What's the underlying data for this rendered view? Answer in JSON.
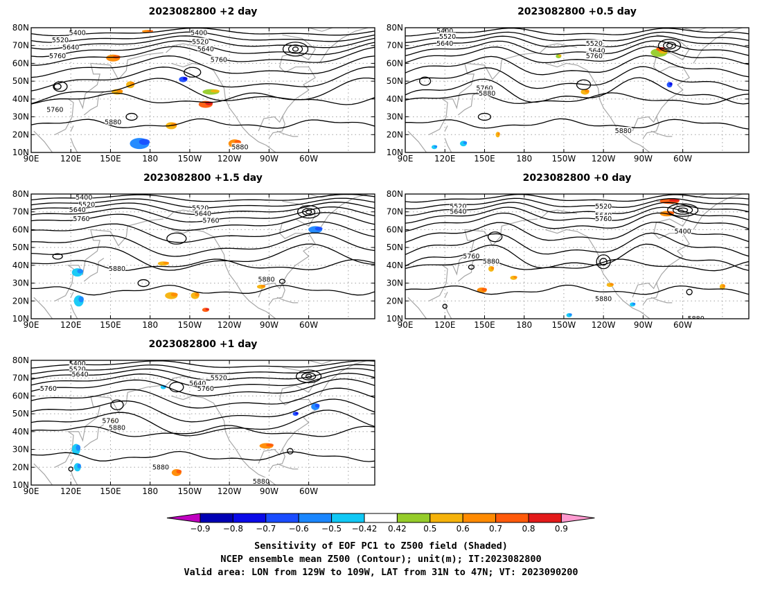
{
  "panels": [
    {
      "id": "p2",
      "title": "2023082800 +2 day",
      "contour_labels": [
        "5400",
        "5520",
        "5640",
        "5760",
        "5760",
        "5880",
        "5400",
        "5520",
        "5640",
        "5760",
        "5880"
      ]
    },
    {
      "id": "p05",
      "title": "2023082800 +0.5 day",
      "contour_labels": [
        "5400",
        "5520",
        "5640",
        "5760",
        "5880",
        "5520",
        "5640",
        "5760",
        "5880"
      ]
    },
    {
      "id": "p15",
      "title": "2023082800 +1.5 day",
      "contour_labels": [
        "5400",
        "5520",
        "5640",
        "5760",
        "5880",
        "5520",
        "5640",
        "5760",
        "5880"
      ]
    },
    {
      "id": "p0",
      "title": "2023082800 +0 day",
      "contour_labels": [
        "5520",
        "5640",
        "5760",
        "5880",
        "5520",
        "5640",
        "5760",
        "5400",
        "5880",
        "5880"
      ]
    },
    {
      "id": "p1",
      "title": "2023082800 +1 day",
      "contour_labels": [
        "5400",
        "5520",
        "5640",
        "5760",
        "5760",
        "5880",
        "5640",
        "5760",
        "5520",
        "5880",
        "5880"
      ]
    }
  ],
  "lat_labels": [
    "80N",
    "70N",
    "60N",
    "50N",
    "40N",
    "30N",
    "20N",
    "10N"
  ],
  "lon_labels": [
    "90E",
    "120E",
    "150E",
    "180",
    "150W",
    "120W",
    "90W",
    "60W"
  ],
  "colorbar": {
    "ticks": [
      "−0.9",
      "−0.8",
      "−0.7",
      "−0.6",
      "−0.5",
      "−0.42",
      "0.42",
      "0.5",
      "0.6",
      "0.7",
      "0.8",
      "0.9"
    ],
    "colors": {
      "under": "#c000c0",
      "bins": [
        "#0000b4",
        "#0a0ae8",
        "#1a4cff",
        "#1a86ff",
        "#10c8f5",
        "#ffffff",
        "#95cc2a",
        "#f5b20a",
        "#ff8a00",
        "#ff5a0a",
        "#e31a1a"
      ],
      "over": "#ff9ad0"
    }
  },
  "caption": [
    "Sensitivity of EOF PC1 to Z500 field (Shaded)",
    "NCEP ensemble mean Z500 (Contour); unit(m); IT:2023082800",
    "Valid area: LON from 129W to 109W, LAT from 31N to 47N; VT: 2023090200"
  ],
  "style_colors": {
    "contour": "#000000",
    "coast": "#a6a6a6",
    "grid": "#a0a0a0"
  }
}
